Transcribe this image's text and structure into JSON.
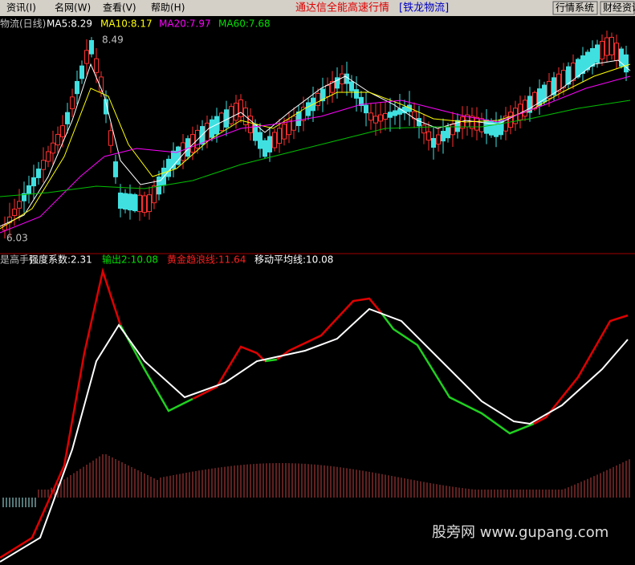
{
  "menu": [
    "资讯(I)",
    "名网(W)",
    "查看(V)",
    "帮助(H)"
  ],
  "header": {
    "title": "通达信全能高速行情",
    "stock": "[铁龙物流]"
  },
  "buttons": [
    "行情系统",
    "财经资讯"
  ],
  "price_panel": {
    "name": "物流(日线)",
    "ma": [
      "MA5:8.29",
      "MA10:8.17",
      "MA20:7.97",
      "MA60:7.68"
    ],
    "high_label": "8.49",
    "low_label": "6.03"
  },
  "indicator_panel": {
    "name": "是高手)",
    "legend": [
      "强度系数:2.31",
      "输出2:10.08",
      "黄金趋浪线:11.64",
      "移动平均线:10.08"
    ]
  },
  "watermark": "股旁网 www.gupang.com"
}
